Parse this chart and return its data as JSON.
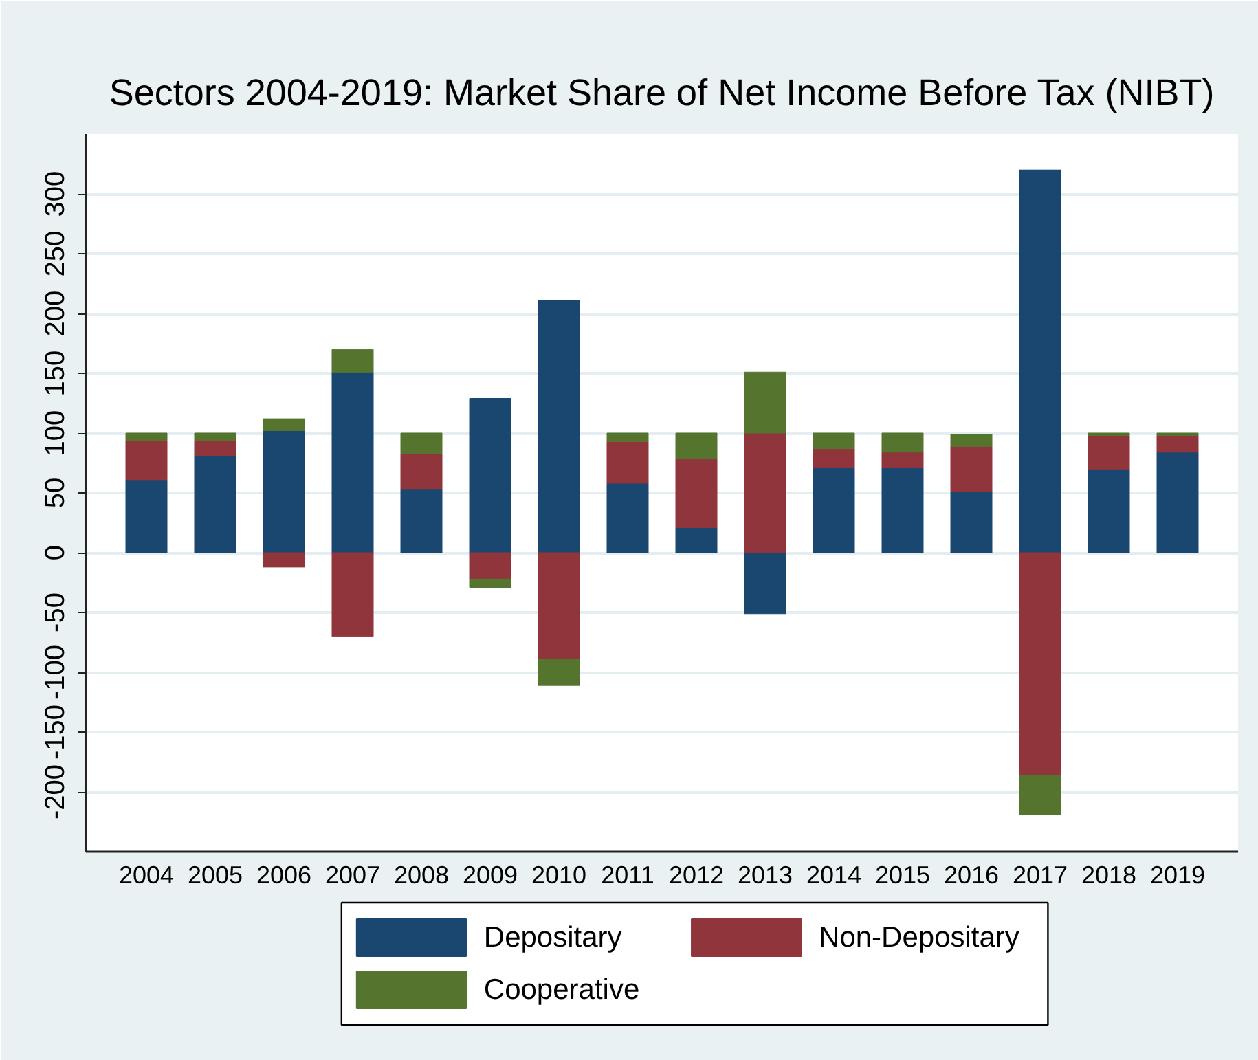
{
  "chart_data": {
    "type": "bar",
    "title": "Sectors 2004-2019: Market Share of Net Income Before Tax (NIBT)",
    "categories": [
      "2004",
      "2005",
      "2006",
      "2007",
      "2008",
      "2009",
      "2010",
      "2011",
      "2012",
      "2013",
      "2014",
      "2015",
      "2016",
      "2017",
      "2018",
      "2019"
    ],
    "stacked": true,
    "series": [
      {
        "name": "Depositary",
        "color": "#1a476f",
        "values": [
          61,
          81,
          102,
          151,
          53,
          129,
          211,
          58,
          21,
          -51,
          71,
          71,
          51,
          320,
          70,
          84
        ]
      },
      {
        "name": "Non-Depositary",
        "color": "#90353b",
        "values": [
          33,
          13,
          -12,
          -70,
          30,
          -22,
          -89,
          35,
          58,
          100,
          16,
          13,
          38,
          -186,
          28,
          14
        ]
      },
      {
        "name": "Cooperative",
        "color": "#55752f",
        "values": [
          6,
          6,
          10,
          19,
          17,
          -7,
          -22,
          7,
          21,
          51,
          13,
          16,
          10,
          -33,
          2,
          2
        ]
      }
    ],
    "ylim": [
      -250,
      350
    ],
    "yticks": [
      -200,
      -150,
      -100,
      -50,
      0,
      50,
      100,
      150,
      200,
      250,
      300
    ],
    "grid": "y",
    "legend": "bottom"
  }
}
